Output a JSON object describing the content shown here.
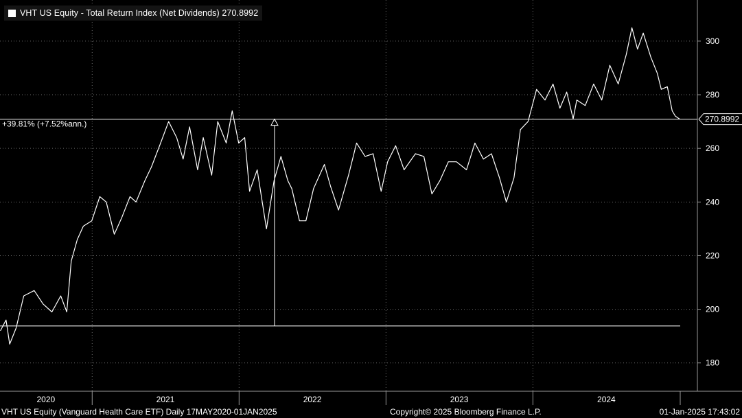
{
  "legend": {
    "text": "VHT US Equity - Total Return Index (Net Dividends) 270.8992",
    "swatch_color": "#ffffff"
  },
  "footer": {
    "left": "VHT US Equity (Vanguard Health Care ETF)  Daily 17MAY2020-01JAN2025",
    "center": "Copyright© 2025 Bloomberg Finance L.P.",
    "right": "01-Jan-2025 17:43:02"
  },
  "chart_data": {
    "type": "line",
    "grid": true,
    "y_axis_side": "right",
    "ylim": [
      172,
      312
    ],
    "yticks": [
      180,
      200,
      220,
      240,
      260,
      280,
      300
    ],
    "xlim": [
      "2020-05-17",
      "2025-01-01"
    ],
    "x_period_labels": [
      {
        "label": "2020",
        "start": "2020-05-17",
        "end": "2020-12-31"
      },
      {
        "label": "2021",
        "start": "2021-01-01",
        "end": "2021-12-31"
      },
      {
        "label": "2022",
        "start": "2022-01-01",
        "end": "2022-12-31"
      },
      {
        "label": "2023",
        "start": "2023-01-01",
        "end": "2023-12-31"
      },
      {
        "label": "2024",
        "start": "2024-01-01",
        "end": "2024-12-31"
      }
    ],
    "last_value": 270.8992,
    "last_value_label": "270.8992",
    "annotation": {
      "text": "+39.81% (+7.52%ann.)",
      "start_value": 193.8,
      "end_value": 270.8992,
      "arrow_date": "2022-03-30"
    },
    "series": [
      {
        "color": "#ffffff",
        "x": [
          "2020-05-18",
          "2020-06-01",
          "2020-06-10",
          "2020-06-26",
          "2020-07-15",
          "2020-08-10",
          "2020-09-01",
          "2020-09-23",
          "2020-10-15",
          "2020-10-30",
          "2020-11-10",
          "2020-11-25",
          "2020-12-10",
          "2020-12-31",
          "2021-01-20",
          "2021-02-05",
          "2021-02-25",
          "2021-03-15",
          "2021-04-05",
          "2021-04-20",
          "2021-05-12",
          "2021-05-28",
          "2021-06-20",
          "2021-07-10",
          "2021-07-30",
          "2021-08-15",
          "2021-08-31",
          "2021-09-20",
          "2021-10-04",
          "2021-10-25",
          "2021-11-09",
          "2021-11-30",
          "2021-12-15",
          "2021-12-31",
          "2022-01-15",
          "2022-01-27",
          "2022-02-15",
          "2022-03-10",
          "2022-03-29",
          "2022-04-15",
          "2022-05-02",
          "2022-05-12",
          "2022-05-31",
          "2022-06-16",
          "2022-07-05",
          "2022-08-01",
          "2022-08-16",
          "2022-09-05",
          "2022-09-30",
          "2022-10-20",
          "2022-11-10",
          "2022-11-30",
          "2022-12-20",
          "2023-01-05",
          "2023-01-25",
          "2023-02-15",
          "2023-03-15",
          "2023-04-05",
          "2023-04-25",
          "2023-05-15",
          "2023-06-05",
          "2023-06-25",
          "2023-07-20",
          "2023-08-10",
          "2023-08-31",
          "2023-09-20",
          "2023-10-10",
          "2023-10-27",
          "2023-11-15",
          "2023-12-01",
          "2023-12-20",
          "2024-01-10",
          "2024-01-31",
          "2024-02-20",
          "2024-03-08",
          "2024-03-25",
          "2024-04-10",
          "2024-04-19",
          "2024-05-10",
          "2024-05-31",
          "2024-06-20",
          "2024-07-10",
          "2024-07-31",
          "2024-08-20",
          "2024-09-03",
          "2024-09-17",
          "2024-10-01",
          "2024-10-20",
          "2024-11-05",
          "2024-11-15",
          "2024-11-30",
          "2024-12-12",
          "2024-12-20",
          "2024-12-31"
        ],
        "y": [
          192,
          196,
          187,
          193,
          205,
          207,
          202,
          199,
          205,
          199,
          218,
          226,
          231,
          233,
          242,
          240,
          228,
          234,
          242,
          240,
          248,
          253,
          262,
          270,
          264,
          256,
          268,
          252,
          264,
          250,
          270,
          262,
          274,
          262,
          264,
          244,
          252,
          230,
          248,
          257,
          248,
          245,
          233,
          233,
          245,
          254,
          246,
          237,
          250,
          262,
          257,
          258,
          244,
          255,
          261,
          252,
          258,
          257,
          243,
          248,
          255,
          255,
          252,
          262,
          256,
          258,
          249,
          240,
          249,
          267,
          270,
          282,
          278,
          284,
          275,
          281,
          271,
          278,
          276,
          284,
          278,
          291,
          284,
          295,
          305,
          297,
          303,
          294,
          288,
          282,
          283,
          274,
          272,
          270.8992
        ]
      }
    ]
  }
}
